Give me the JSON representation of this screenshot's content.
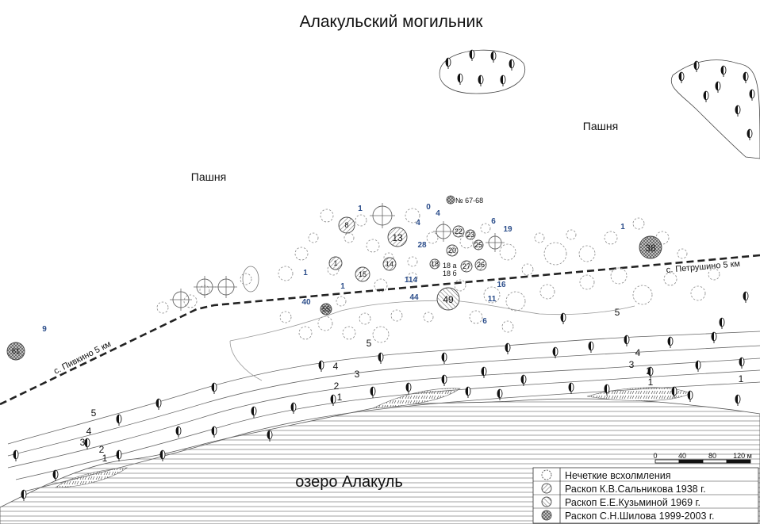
{
  "title": "Алакульский могильник",
  "labels": {
    "field_left": "Пашня",
    "field_right": "Пашня",
    "lake": "озеро Алакуль",
    "road_left": "с. Пивкино 5 км",
    "road_right": "с. Петрушино 5 км",
    "registry_label": "№ 67-68"
  },
  "kurgans": [
    {
      "label": "61",
      "style": "shilov"
    },
    {
      "label": "8",
      "style": "salnikov"
    },
    {
      "label": "13",
      "style": "salnikov"
    },
    {
      "label": "1",
      "style": "salnikov"
    },
    {
      "label": "15",
      "style": "salnikov"
    },
    {
      "label": "14",
      "style": "salnikov"
    },
    {
      "label": "20",
      "style": "salnikov"
    },
    {
      "label": "22",
      "style": "salnikov"
    },
    {
      "label": "23",
      "style": "salnikov"
    },
    {
      "label": "25",
      "style": "salnikov"
    },
    {
      "label": "18",
      "style": "salnikov"
    },
    {
      "label": "27",
      "style": "salnikov"
    },
    {
      "label": "26",
      "style": "salnikov"
    },
    {
      "label": "49",
      "style": "kuzmina"
    },
    {
      "label": "55",
      "style": "shilov"
    },
    {
      "label": "38",
      "style": "shilov"
    }
  ],
  "kurgan_sublabels": [
    "18 а",
    "18 б"
  ],
  "excavation_numbers": [
    "9",
    "1",
    "1",
    "1",
    "0",
    "4",
    "6",
    "19",
    "4",
    "28",
    "114",
    "44",
    "40",
    "16",
    "11",
    "6",
    "1"
  ],
  "contour_labels": [
    "5",
    "4",
    "3",
    "2",
    "1",
    "5",
    "4",
    "3",
    "2",
    "1",
    "5",
    "4",
    "3",
    "2",
    "1",
    "1"
  ],
  "scale": {
    "ticks": [
      "0",
      "40",
      "80",
      "120 м"
    ]
  },
  "legend": [
    {
      "label": "Нечеткие всхолмления",
      "icon": "dashed-circle-icon"
    },
    {
      "label": "Раскоп К.В.Сальникова 1938 г.",
      "icon": "hatched-circle-icon"
    },
    {
      "label": "Раскоп Е.Е.Кузьминой 1969 г.",
      "icon": "reverse-hatched-circle-icon"
    },
    {
      "label": "Раскоп С.Н.Шилова 1999-2003 г.",
      "icon": "crosshatched-circle-icon"
    }
  ],
  "colors": {
    "numbers": "#2b4d8a",
    "ink": "#111111"
  }
}
